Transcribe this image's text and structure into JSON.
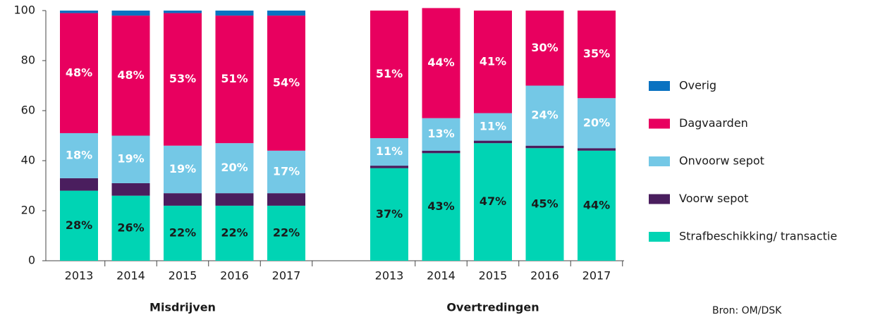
{
  "chart_data": {
    "type": "stacked_bar",
    "groups": [
      {
        "label": "Misdrijven",
        "categories": [
          "2013",
          "2014",
          "2015",
          "2016",
          "2017"
        ]
      },
      {
        "label": "Overtredingen",
        "categories": [
          "2013",
          "2014",
          "2015",
          "2016",
          "2017"
        ]
      }
    ],
    "series": [
      {
        "name": "Strafbeschikking/ transactie",
        "color": "#00d4b4",
        "label_color": "#1a1a1a",
        "values": [
          28,
          26,
          22,
          22,
          22,
          37,
          43,
          47,
          45,
          44
        ],
        "value_labels": [
          "28%",
          "26%",
          "22%",
          "22%",
          "22%",
          "37%",
          "43%",
          "47%",
          "45%",
          "44%"
        ]
      },
      {
        "name": "Voorw sepot",
        "color": "#4a1e5e",
        "values": [
          5,
          5,
          5,
          5,
          5,
          1,
          1,
          1,
          1,
          1
        ]
      },
      {
        "name": "Onvoorw sepot",
        "color": "#74c8e6",
        "label_color": "#ffffff",
        "values": [
          18,
          19,
          19,
          20,
          17,
          11,
          13,
          11,
          24,
          20
        ],
        "value_labels": [
          "18%",
          "19%",
          "19%",
          "20%",
          "17%",
          "11%",
          "13%",
          "11%",
          "24%",
          "20%"
        ]
      },
      {
        "name": "Dagvaarden",
        "color": "#e8005f",
        "label_color": "#ffffff",
        "values": [
          48,
          48,
          53,
          51,
          54,
          51,
          44,
          41,
          30,
          35
        ],
        "value_labels": [
          "48%",
          "48%",
          "53%",
          "51%",
          "54%",
          "51%",
          "44%",
          "41%",
          "30%",
          "35%"
        ]
      },
      {
        "name": "Overig",
        "color": "#0a72c1",
        "values": [
          1,
          2,
          1,
          2,
          2,
          0,
          0,
          0,
          0,
          0
        ]
      }
    ],
    "ylim": [
      0,
      100
    ],
    "yticks": [
      0,
      20,
      40,
      60,
      80,
      100
    ],
    "source": "Bron: OM/DSK"
  }
}
